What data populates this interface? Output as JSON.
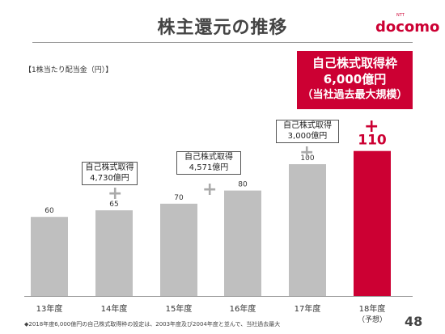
{
  "header": {
    "title": "株主還元の推移",
    "logo_small": "NTT",
    "logo": "docomo"
  },
  "unit_label": "【1株当たり配当金（円）】",
  "callouts": {
    "big": {
      "line1": "自己株式取得枠",
      "line2": "6,000億円",
      "line3": "（当社過去最大規模）"
    },
    "fy14": {
      "line1": "自己株式取得",
      "line2": "4,730億円"
    },
    "fy15": {
      "line1": "自己株式取得",
      "line2": "4,571億円"
    },
    "fy17": {
      "line1": "自己株式取得",
      "line2": "3,000億円"
    }
  },
  "plus_symbol": "+",
  "chart_data": {
    "type": "bar",
    "categories": [
      "13年度",
      "14年度",
      "15年度",
      "16年度",
      "17年度",
      "18年度"
    ],
    "category_notes": [
      "",
      "",
      "",
      "",
      "",
      "（予想）"
    ],
    "values": [
      60,
      65,
      70,
      80,
      100,
      110
    ],
    "value_labels": [
      "60",
      "65",
      "70",
      "80",
      "100",
      "110"
    ],
    "highlight_index": 5,
    "colors": {
      "default": "#bfbfbf",
      "highlight": "#cc0033",
      "label_default": "#333333",
      "label_highlight": "#cc0033"
    },
    "ylim": [
      0,
      120
    ],
    "grid": false,
    "title": "",
    "xlabel": "",
    "ylabel": "【1株当たり配当金（円）】"
  },
  "footnote": "◆2018年度6,000億円の自己株式取得枠の設定は、2003年度及び2004年度と並んで、当社過去最大",
  "page_number": "48"
}
